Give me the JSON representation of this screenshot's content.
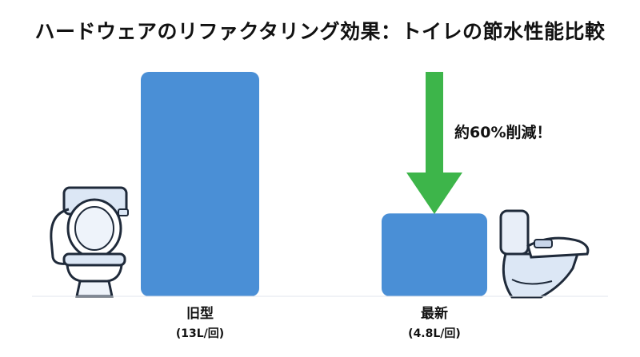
{
  "chart_data": {
    "type": "bar",
    "title": "ハードウェアのリファクタリング効果：トイレの節水性能比較",
    "categories": [
      "旧型",
      "最新"
    ],
    "category_sublabels": [
      "(13L/回)",
      "(4.8L/回)"
    ],
    "values": [
      13,
      4.8
    ],
    "unit": "L/回",
    "ylim": [
      0,
      14
    ],
    "grid": false,
    "bar_color": "#4a8fd6",
    "annotation": {
      "text": "約60%削減！",
      "arrow_color": "#3db54a"
    },
    "icons": [
      "old-toilet-icon",
      "modern-toilet-icon"
    ]
  }
}
